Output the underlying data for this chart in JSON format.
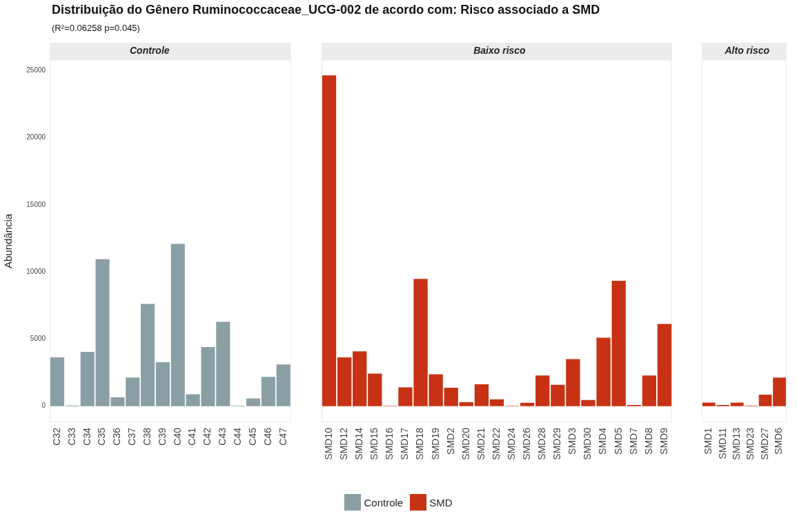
{
  "chart_data": [
    {
      "type": "other",
      "title": "Distribuição do Gênero Ruminococcaceae_UCG-002 de acordo com: Risco associado a SMD",
      "subtitle": "(R²=0.06258 p=0.045)"
    },
    {
      "type": "bar",
      "title": "Controle",
      "ylabel": "Abundância",
      "categories": [
        "C32",
        "C33",
        "C34",
        "C35",
        "C36",
        "C37",
        "C38",
        "C39",
        "C40",
        "C41",
        "C42",
        "C43",
        "C44",
        "C45",
        "C46",
        "C47"
      ],
      "series": [
        {
          "name": "Controle",
          "color": "#8a9ea5",
          "values": [
            3630,
            50,
            4050,
            10940,
            670,
            2130,
            7620,
            3270,
            12090,
            880,
            4410,
            6280,
            30,
            570,
            2180,
            3110
          ]
        }
      ],
      "ylim": [
        -1200,
        25800
      ],
      "yticks": [
        0,
        5000,
        10000,
        15000,
        20000,
        25000
      ],
      "legend": "bottom"
    },
    {
      "type": "bar",
      "title": "Baixo risco",
      "categories": [
        "SMD10",
        "SMD12",
        "SMD14",
        "SMD15",
        "SMD16",
        "SMD17",
        "SMD18",
        "SMD19",
        "SMD2",
        "SMD20",
        "SMD21",
        "SMD22",
        "SMD24",
        "SMD26",
        "SMD28",
        "SMD29",
        "SMD3",
        "SMD30",
        "SMD4",
        "SMD5",
        "SMD7",
        "SMD8",
        "SMD9"
      ],
      "series": [
        {
          "name": "SMD",
          "color": "#c83214",
          "values": [
            24640,
            3630,
            4080,
            2420,
            30,
            1400,
            9480,
            2370,
            1370,
            300,
            1630,
            510,
            30,
            250,
            2280,
            1590,
            3500,
            460,
            5100,
            9340,
            80,
            2280,
            6120
          ]
        }
      ],
      "ylim": [
        -1200,
        25800
      ],
      "yticks": [
        0,
        5000,
        10000,
        15000,
        20000,
        25000
      ],
      "tick_labels": "x",
      "legend": "bottom"
    },
    {
      "type": "bar",
      "title": "Alto risco",
      "categories": [
        "SMD1",
        "SMD11",
        "SMD13",
        "SMD23",
        "SMD27",
        "SMD6"
      ],
      "series": [
        {
          "name": "SMD",
          "color": "#c83214",
          "values": [
            260,
            80,
            260,
            30,
            860,
            2130
          ]
        }
      ],
      "ylim": [
        -1200,
        25800
      ],
      "yticks": [
        0,
        5000,
        10000,
        15000,
        20000,
        25000
      ],
      "tick_labels": "x",
      "legend": "bottom"
    }
  ]
}
